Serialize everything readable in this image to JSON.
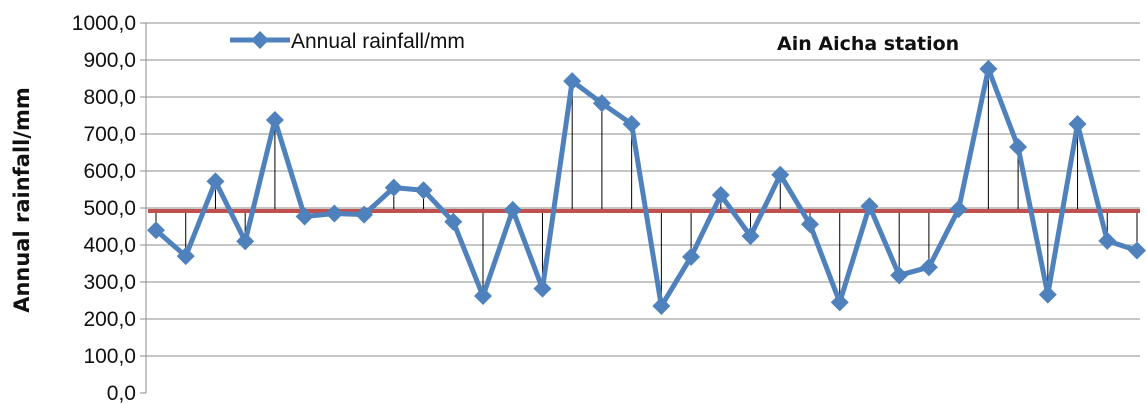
{
  "chart_data": {
    "type": "line",
    "title": "Ain Aicha station",
    "xlabel": "",
    "ylabel": "Annual rainfall/mm",
    "ylim": [
      0,
      1000
    ],
    "yticks": [
      "0,0",
      "100,0",
      "200,0",
      "300,0",
      "400,0",
      "500,0",
      "600,0",
      "700,0",
      "800,0",
      "900,0",
      "1000,0"
    ],
    "grid": true,
    "legend_position": "top-left",
    "series": [
      {
        "name": "Annual rainfall/mm",
        "color": "#4f81bd",
        "marker": "diamond",
        "values": [
          440,
          370,
          572,
          410,
          738,
          477,
          485,
          482,
          555,
          548,
          463,
          262,
          495,
          282,
          843,
          783,
          727,
          235,
          368,
          535,
          424,
          590,
          456,
          245,
          505,
          318,
          340,
          497,
          876,
          665,
          266,
          727,
          411,
          385
        ]
      }
    ],
    "mean_line": {
      "value": 492,
      "color": "#c0504d"
    }
  }
}
